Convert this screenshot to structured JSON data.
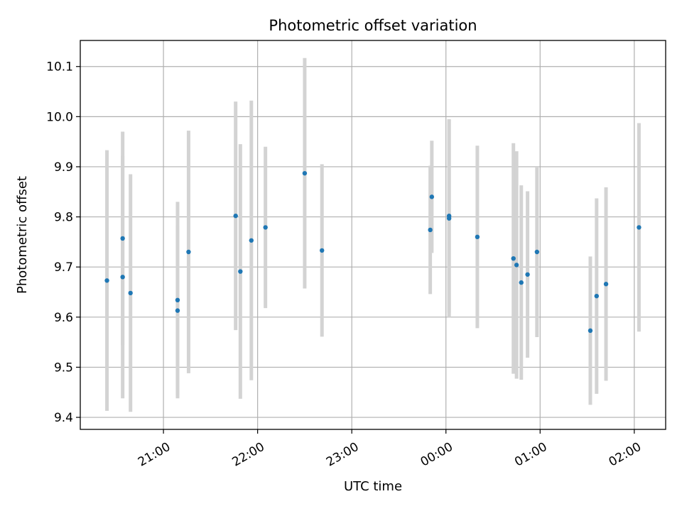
{
  "chart_data": {
    "type": "scatter",
    "title": "Photometric offset variation",
    "xlabel": "UTC time",
    "ylabel": "Photometric offset",
    "x_unit": "UTC time (HH:MM)",
    "x_ticks": [
      "21:00",
      "22:00",
      "23:00",
      "00:00",
      "01:00",
      "02:00"
    ],
    "y_ticks": [
      "9.4",
      "9.5",
      "9.6",
      "9.7",
      "9.8",
      "9.9",
      "10.0",
      "10.1"
    ],
    "xlim": [
      "20:07",
      "02:20"
    ],
    "ylim": [
      9.376,
      10.152
    ],
    "grid": true,
    "legend": "none",
    "point_color": "#1f77b4",
    "error_bar_color": "#d3d3d3",
    "points": [
      {
        "time": "20:24",
        "y": 9.673,
        "err": 0.26
      },
      {
        "time": "20:34",
        "y": 9.757,
        "err": 0.213
      },
      {
        "time": "20:34",
        "y": 9.68,
        "err": 0.242
      },
      {
        "time": "20:39",
        "y": 9.648,
        "err": 0.237
      },
      {
        "time": "21:09",
        "y": 9.634,
        "err": 0.196
      },
      {
        "time": "21:09",
        "y": 9.613,
        "err": 0.17
      },
      {
        "time": "21:16",
        "y": 9.73,
        "err": 0.242
      },
      {
        "time": "21:46",
        "y": 9.802,
        "err": 0.228
      },
      {
        "time": "21:49",
        "y": 9.691,
        "err": 0.254
      },
      {
        "time": "21:56",
        "y": 9.753,
        "err": 0.279
      },
      {
        "time": "22:05",
        "y": 9.779,
        "err": 0.161
      },
      {
        "time": "22:30",
        "y": 9.887,
        "err": 0.23
      },
      {
        "time": "22:41",
        "y": 9.733,
        "err": 0.172
      },
      {
        "time": "23:50",
        "y": 9.774,
        "err": 0.128
      },
      {
        "time": "23:51",
        "y": 9.84,
        "err": 0.112
      },
      {
        "time": "00:02",
        "y": 9.802,
        "err": 0.193
      },
      {
        "time": "00:02",
        "y": 9.797,
        "err": 0.197
      },
      {
        "time": "00:20",
        "y": 9.76,
        "err": 0.182
      },
      {
        "time": "00:43",
        "y": 9.717,
        "err": 0.23
      },
      {
        "time": "00:45",
        "y": 9.704,
        "err": 0.227
      },
      {
        "time": "00:48",
        "y": 9.669,
        "err": 0.194
      },
      {
        "time": "00:52",
        "y": 9.685,
        "err": 0.166
      },
      {
        "time": "00:58",
        "y": 9.73,
        "err": 0.17
      },
      {
        "time": "01:32",
        "y": 9.573,
        "err": 0.148
      },
      {
        "time": "01:36",
        "y": 9.642,
        "err": 0.195
      },
      {
        "time": "01:42",
        "y": 9.666,
        "err": 0.193
      },
      {
        "time": "02:03",
        "y": 9.779,
        "err": 0.208
      }
    ]
  }
}
